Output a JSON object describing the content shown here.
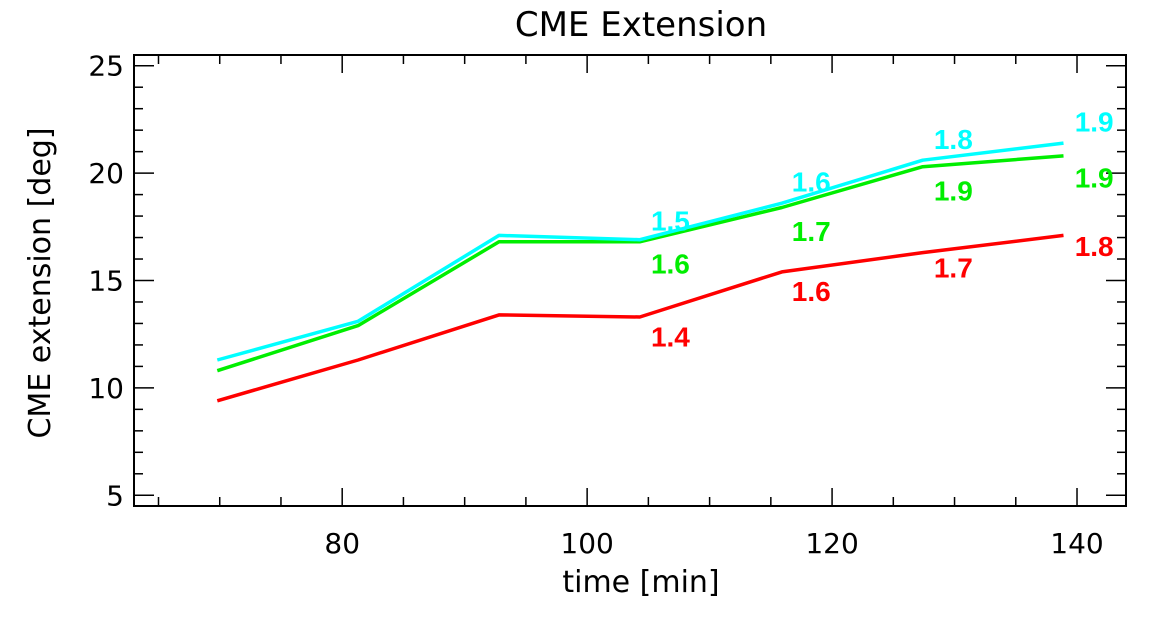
{
  "chart_data": {
    "type": "line",
    "title": "CME Extension",
    "xlabel": "time [min]",
    "ylabel": "CME extension [deg]",
    "xlim": [
      63,
      144
    ],
    "ylim": [
      4.5,
      25.5
    ],
    "xticks": [
      80,
      100,
      120,
      140
    ],
    "xminor_step": 5,
    "yticks": [
      5,
      10,
      15,
      20,
      25
    ],
    "yminor_step": 1,
    "series": [
      {
        "name": "red",
        "color": "#ff0000",
        "x": [
          69.8,
          81.3,
          92.8,
          104.3,
          115.9,
          127.4,
          138.9
        ],
        "y": [
          9.4,
          11.3,
          13.4,
          13.3,
          15.4,
          16.3,
          17.1
        ],
        "labels": [
          {
            "x": 106.8,
            "y": 12.4,
            "text": "1.4"
          },
          {
            "x": 118.3,
            "y": 14.5,
            "text": "1.6"
          },
          {
            "x": 129.9,
            "y": 15.6,
            "text": "1.7"
          },
          {
            "x": 141.4,
            "y": 16.6,
            "text": "1.8"
          }
        ]
      },
      {
        "name": "green",
        "color": "#00ee00",
        "x": [
          69.8,
          81.3,
          92.8,
          104.3,
          115.9,
          127.4,
          138.9
        ],
        "y": [
          10.8,
          12.9,
          16.8,
          16.8,
          18.4,
          20.3,
          20.8
        ],
        "labels": [
          {
            "x": 106.8,
            "y": 15.8,
            "text": "1.6"
          },
          {
            "x": 118.3,
            "y": 17.3,
            "text": "1.7"
          },
          {
            "x": 129.9,
            "y": 19.2,
            "text": "1.9"
          },
          {
            "x": 141.4,
            "y": 19.8,
            "text": "1.9"
          }
        ]
      },
      {
        "name": "cyan",
        "color": "#00ffff",
        "x": [
          69.8,
          81.3,
          92.8,
          104.3,
          115.9,
          127.4,
          138.9
        ],
        "y": [
          11.3,
          13.1,
          17.1,
          16.9,
          18.6,
          20.6,
          21.4
        ],
        "labels": [
          {
            "x": 106.8,
            "y": 17.8,
            "text": "1.5"
          },
          {
            "x": 118.3,
            "y": 19.6,
            "text": "1.6"
          },
          {
            "x": 129.9,
            "y": 21.6,
            "text": "1.8"
          },
          {
            "x": 141.4,
            "y": 22.4,
            "text": "1.9"
          }
        ]
      }
    ]
  }
}
